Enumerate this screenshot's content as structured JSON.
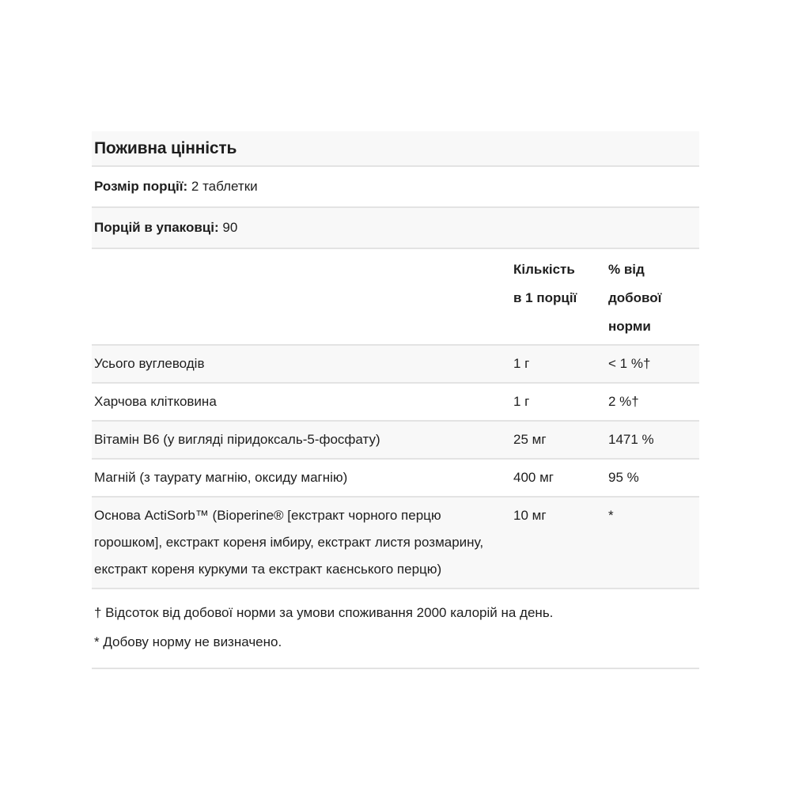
{
  "nutrition_panel": {
    "title": "Поживна цінність",
    "serving": {
      "label": "Розмір порції:",
      "value": "2 таблетки"
    },
    "servings_per_container": {
      "label": "Порцій в упаковці:",
      "value": "90"
    },
    "columns": {
      "amount": "Кількість в 1 порції",
      "daily_value": "% від добової норми"
    },
    "rows": [
      {
        "name": "Усього вуглеводів",
        "amount": "1 г",
        "daily_value": "< 1 %†"
      },
      {
        "name": "Харчова клітковина",
        "amount": "1 г",
        "daily_value": "2 %†"
      },
      {
        "name": "Вітамін B6 (у вигляді піридоксаль-5-фосфату)",
        "amount": "25 мг",
        "daily_value": "1471 %"
      },
      {
        "name": "Магній (з таурату магнію, оксиду магнію)",
        "amount": "400 мг",
        "daily_value": "95 %"
      },
      {
        "name": "Основа ActiSorb™ (Bioperine® [екстракт чорного перцю горошком], екстракт кореня імбиру, екстракт листя розмарину, екстракт кореня куркуми та екстракт каєнського перцю)",
        "amount": "10 мг",
        "daily_value": "*"
      }
    ],
    "footnotes": {
      "dagger": "† Відсоток від добової норми за умови споживання 2000 калорій на день.",
      "asterisk": "* Добову норму не визначено."
    },
    "colors": {
      "stripe_background": "#f8f8f8",
      "divider": "#e3e3e3",
      "text": "#1e1e1e"
    }
  }
}
